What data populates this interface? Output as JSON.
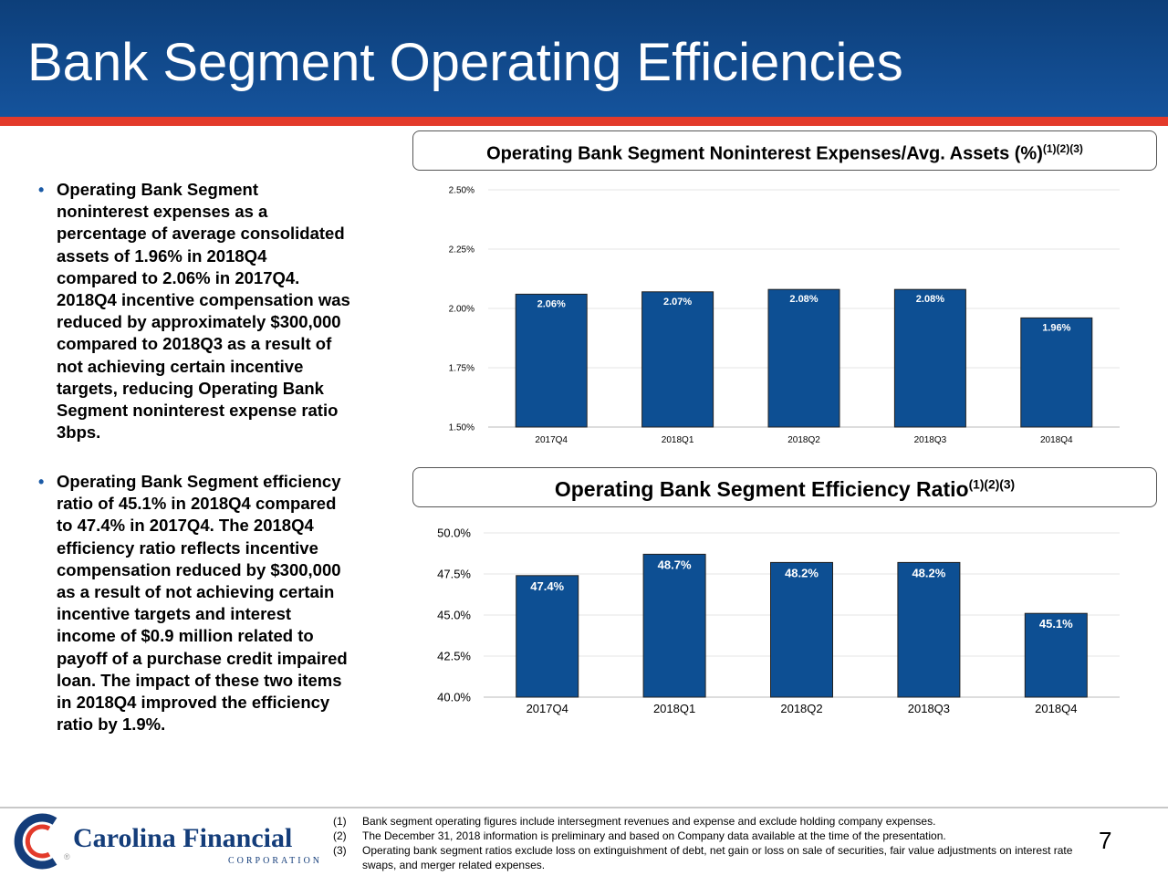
{
  "page": {
    "title": "Bank Segment Operating Efficiencies",
    "page_number": "7"
  },
  "bullets": [
    "Operating Bank Segment noninterest expenses as a percentage of average consolidated assets of 1.96% in 2018Q4 compared to 2.06% in 2017Q4. 2018Q4 incentive compensation was reduced by approximately $300,000 compared to 2018Q3 as a result of not achieving certain incentive targets, reducing Operating Bank Segment noninterest expense ratio 3bps.",
    "Operating Bank Segment efficiency ratio of 45.1% in 2018Q4 compared to 47.4% in 2017Q4. The 2018Q4 efficiency ratio reflects incentive compensation reduced by $300,000 as a result of not achieving certain incentive targets and interest income of $0.9 million related to payoff of a purchase credit impaired loan. The impact of these two items in 2018Q4 improved the efficiency ratio by 1.9%."
  ],
  "bullet_lines": [
    [
      "Operating Bank Segment",
      "noninterest expenses as a",
      "percentage of average consolidated",
      "assets of 1.96% in 2018Q4",
      "compared to 2.06% in 2017Q4.",
      "2018Q4 incentive compensation was",
      "reduced by approximately $300,000",
      "compared to 2018Q3 as a result of",
      "not achieving certain incentive",
      "targets, reducing Operating Bank",
      "Segment noninterest expense ratio",
      "3bps."
    ],
    [
      "Operating Bank Segment efficiency",
      "ratio of 45.1% in 2018Q4 compared",
      "to 47.4% in 2017Q4. The 2018Q4",
      "efficiency ratio reflects incentive",
      "compensation reduced by $300,000",
      "as a result of not achieving certain",
      "incentive targets and interest",
      "income of $0.9 million related to",
      "payoff of a purchase credit impaired",
      "loan. The impact of these two items",
      "in 2018Q4 improved the efficiency",
      "ratio by 1.9%."
    ]
  ],
  "chart_data": [
    {
      "type": "bar",
      "title": "Operating Bank Segment Noninterest Expenses/Avg. Assets (%)",
      "title_superscript": "(1)(2)(3)",
      "categories": [
        "2017Q4",
        "2018Q1",
        "2018Q2",
        "2018Q3",
        "2018Q4"
      ],
      "values": [
        2.06,
        2.07,
        2.08,
        2.08,
        1.96
      ],
      "data_labels": [
        "2.06%",
        "2.07%",
        "2.08%",
        "2.08%",
        "1.96%"
      ],
      "yticks": [
        1.5,
        1.75,
        2.0,
        2.25,
        2.5
      ],
      "ytick_labels": [
        "1.50%",
        "1.75%",
        "2.00%",
        "2.25%",
        "2.50%"
      ],
      "ylim": [
        1.5,
        2.5
      ],
      "grid": true,
      "bar_color": "#0d4f93",
      "label_color": "#ffffff"
    },
    {
      "type": "bar",
      "title": "Operating Bank Segment Efficiency Ratio",
      "title_superscript": "(1)(2)(3)",
      "categories": [
        "2017Q4",
        "2018Q1",
        "2018Q2",
        "2018Q3",
        "2018Q4"
      ],
      "values": [
        47.4,
        48.7,
        48.2,
        48.2,
        45.1
      ],
      "data_labels": [
        "47.4%",
        "48.7%",
        "48.2%",
        "48.2%",
        "45.1%"
      ],
      "yticks": [
        40.0,
        42.5,
        45.0,
        47.5,
        50.0
      ],
      "ytick_labels": [
        "40.0%",
        "42.5%",
        "45.0%",
        "47.5%",
        "50.0%"
      ],
      "ylim": [
        40.0,
        50.0
      ],
      "grid": true,
      "bar_color": "#0d4f93",
      "label_color": "#ffffff"
    }
  ],
  "footnotes": [
    {
      "num": "(1)",
      "text": "Bank segment operating figures include intersegment revenues and expense and exclude holding company expenses."
    },
    {
      "num": "(2)",
      "text": "The December 31, 2018 information is preliminary and based on Company data available at the time of the presentation."
    },
    {
      "num": "(3)",
      "text": "Operating bank segment ratios exclude loss on extinguishment of debt, net gain or loss on sale of securities, fair value adjustments on interest rate swaps, and merger related expenses."
    }
  ],
  "logo": {
    "name": "Carolina Financial",
    "subtitle": "CORPORATION",
    "registered": "®"
  },
  "colors": {
    "header": "#15539c",
    "stripe": "#e33a2a",
    "bar": "#0d4f93"
  }
}
